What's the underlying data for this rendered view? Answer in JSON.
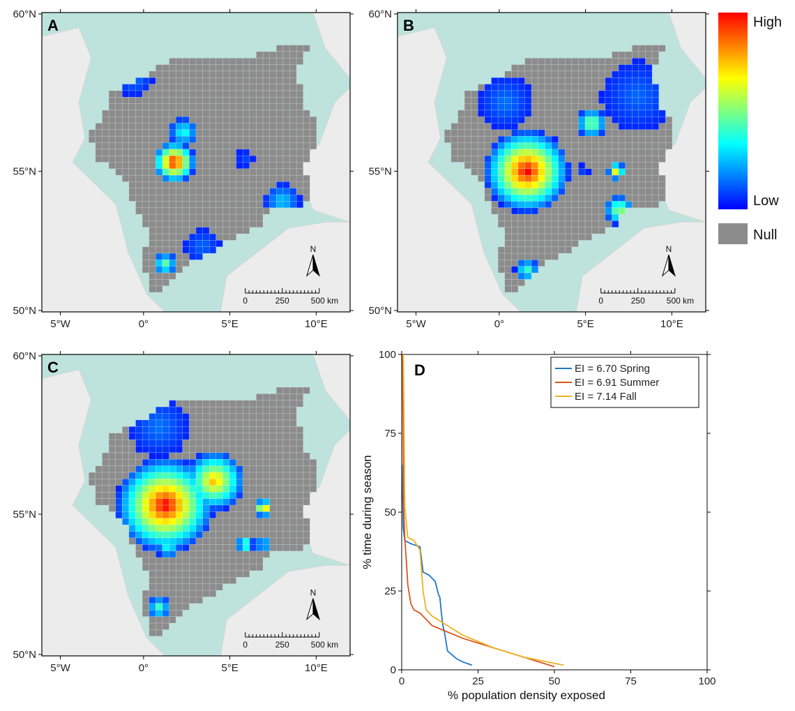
{
  "panels": [
    {
      "letter": "A",
      "lat_labels": [
        "60°N",
        "55°N",
        "50°N"
      ],
      "lon_labels": [
        "5°W",
        "0°",
        "5°E",
        "10°E"
      ]
    },
    {
      "letter": "B",
      "lat_labels": [
        "60°N",
        "55°N",
        "50°N"
      ],
      "lon_labels": [
        "5°W",
        "0°",
        "5°E",
        "10°E"
      ]
    },
    {
      "letter": "C",
      "lat_labels": [
        "60°N",
        "55°N",
        "50°N"
      ],
      "lon_labels": [
        "5°W",
        "0°",
        "5°E",
        "10°E"
      ]
    }
  ],
  "north_label": "N",
  "scale_bar": {
    "labels": [
      "0",
      "250",
      "500 km"
    ]
  },
  "legend": {
    "high": "High",
    "low": "Low",
    "null": "Null"
  },
  "colors": {
    "sea": "#bde3dc",
    "land": "#ececec",
    "null_cell": "#8c8c8c",
    "ramp": [
      "#0000ff",
      "#0080ff",
      "#00ffff",
      "#80ff80",
      "#ffff00",
      "#ff8000",
      "#ff0000"
    ],
    "spring": "#1f77c4",
    "summer": "#d9541e",
    "fall": "#edb120"
  },
  "chart_data": {
    "type": "line",
    "letter": "D",
    "xlabel": "% population density exposed",
    "ylabel": "% time during season",
    "xlim": [
      0,
      100
    ],
    "ylim": [
      0,
      100
    ],
    "xticks": [
      "0",
      "25",
      "50",
      "75",
      "100"
    ],
    "yticks": [
      "0",
      "25",
      "50",
      "75",
      "100"
    ],
    "legend_position": "top-right",
    "series": [
      {
        "name": "EI = 6.70  Spring",
        "color": "#1f77c4",
        "x": [
          0.2,
          0.3,
          0.5,
          1,
          3,
          6,
          7,
          9,
          11,
          12,
          12.5,
          13,
          13.5,
          14,
          15,
          18,
          20,
          23
        ],
        "y": [
          65,
          56,
          45,
          41,
          40,
          39,
          31,
          30,
          28,
          24,
          23,
          18,
          14,
          12,
          6,
          3.5,
          2.5,
          1.5
        ]
      },
      {
        "name": "EI = 6.91  Summer",
        "color": "#d9541e",
        "x": [
          0.3,
          0.4,
          0.6,
          1,
          1.5,
          2,
          3,
          4,
          6,
          8,
          10,
          15,
          20,
          30,
          40,
          50
        ],
        "y": [
          100,
          85,
          53,
          42,
          35,
          27,
          21,
          19,
          18,
          16,
          14,
          12,
          10,
          7,
          4,
          1
        ]
      },
      {
        "name": "EI = 7.14  Fall",
        "color": "#edb120",
        "x": [
          0.5,
          0.7,
          1,
          2,
          4,
          6,
          7,
          8,
          10,
          15,
          20,
          30,
          40,
          53
        ],
        "y": [
          100,
          85,
          52,
          42,
          41,
          38,
          25,
          19,
          17,
          14,
          11,
          7,
          4,
          1.5
        ]
      }
    ]
  }
}
